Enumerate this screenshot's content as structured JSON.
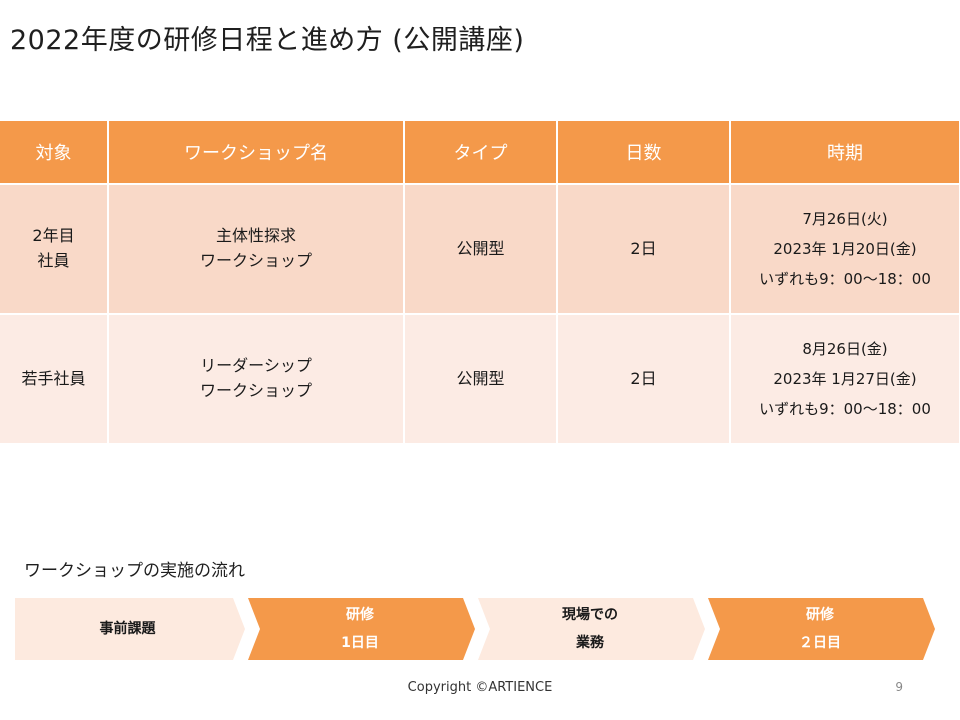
{
  "title": "2022年度の研修日程と進め方 (公開講座)",
  "table": {
    "headers": [
      "対象",
      "ワークショップ名",
      "タイプ",
      "日数",
      "時期"
    ],
    "rows": [
      {
        "target": [
          "2年目",
          "社員"
        ],
        "workshop": [
          "主体性探求",
          "ワークショップ"
        ],
        "type": "公開型",
        "days": "2日",
        "period": [
          "7月26日(火)",
          "2023年 1月20日(金)",
          "いずれも9：00～18：00"
        ]
      },
      {
        "target": [
          "若手社員"
        ],
        "workshop": [
          "リーダーシップ",
          "ワークショップ"
        ],
        "type": "公開型",
        "days": "2日",
        "period": [
          "8月26日(金)",
          "2023年 1月27日(金)",
          "いずれも9：00～18：00"
        ]
      }
    ]
  },
  "flow": {
    "title": "ワークショップの実施の流れ",
    "steps": [
      {
        "lines": [
          "事前課題"
        ]
      },
      {
        "lines": [
          "研修",
          "1日目"
        ]
      },
      {
        "lines": [
          "現場での",
          "業務"
        ]
      },
      {
        "lines": [
          "研修",
          "２日目"
        ]
      }
    ]
  },
  "footer": {
    "copyright": "Copyright ©ARTIENCE",
    "page": "9"
  },
  "colors": {
    "header_orange": "#f4994a",
    "row_peach": "#f9d9c8",
    "row_light": "#fcebe4",
    "step_light": "#fdeadf"
  }
}
